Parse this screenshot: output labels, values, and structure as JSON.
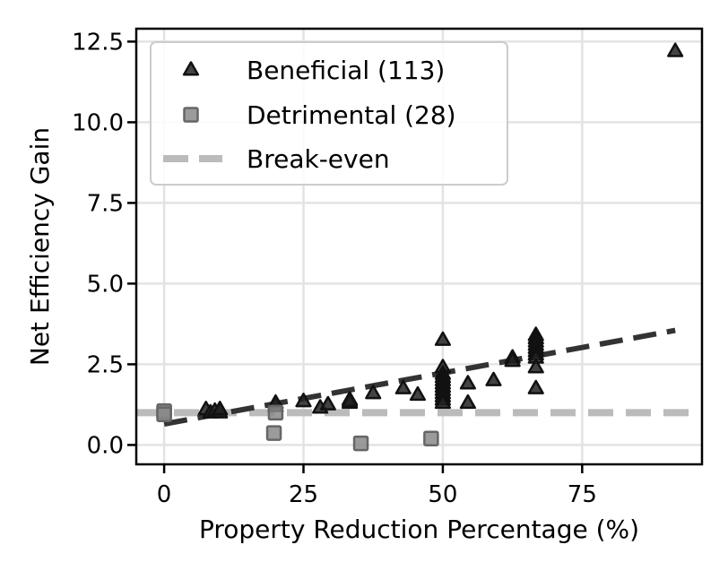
{
  "chart_data": {
    "type": "scatter",
    "title": "",
    "xlabel": "Property Reduction Percentage (%)",
    "ylabel": "Net Efficiency Gain",
    "xlim": [
      -5,
      96.5
    ],
    "ylim": [
      -0.6,
      12.9
    ],
    "xticks": [
      0,
      25,
      50,
      75
    ],
    "xtick_labels": [
      "0",
      "25",
      "50",
      "75"
    ],
    "yticks": [
      0.0,
      2.5,
      5.0,
      7.5,
      10.0,
      12.5
    ],
    "ytick_labels": [
      "0.0",
      "2.5",
      "5.0",
      "7.5",
      "10.0",
      "12.5"
    ],
    "grid": true,
    "legend_position": "top-left",
    "series": [
      {
        "name": "Beneficial (113)",
        "marker": "triangle",
        "color": "#222222",
        "points": [
          [
            7.5,
            1.1
          ],
          [
            8.3,
            1.0
          ],
          [
            9.1,
            1.05
          ],
          [
            10.0,
            1.0
          ],
          [
            10.0,
            1.1
          ],
          [
            20.0,
            1.2
          ],
          [
            20.0,
            1.3
          ],
          [
            25.0,
            1.35
          ],
          [
            28.0,
            1.15
          ],
          [
            29.4,
            1.25
          ],
          [
            33.3,
            1.3
          ],
          [
            33.3,
            1.4
          ],
          [
            33.3,
            1.35
          ],
          [
            37.5,
            1.6
          ],
          [
            42.9,
            1.75
          ],
          [
            45.5,
            1.55
          ],
          [
            50.0,
            3.25
          ],
          [
            50.0,
            2.4
          ],
          [
            50.0,
            2.2
          ],
          [
            50.0,
            2.1
          ],
          [
            50.0,
            2.0
          ],
          [
            50.0,
            1.9
          ],
          [
            50.0,
            1.8
          ],
          [
            50.0,
            1.7
          ],
          [
            50.0,
            1.6
          ],
          [
            50.0,
            1.5
          ],
          [
            50.0,
            1.4
          ],
          [
            50.0,
            1.3
          ],
          [
            54.5,
            1.9
          ],
          [
            54.5,
            1.3
          ],
          [
            59.1,
            2.0
          ],
          [
            62.5,
            2.7
          ],
          [
            62.5,
            2.6
          ],
          [
            66.7,
            3.4
          ],
          [
            66.7,
            3.3
          ],
          [
            66.7,
            3.2
          ],
          [
            66.7,
            3.1
          ],
          [
            66.7,
            3.0
          ],
          [
            66.7,
            2.9
          ],
          [
            66.7,
            2.8
          ],
          [
            66.7,
            2.7
          ],
          [
            66.7,
            2.4
          ],
          [
            66.7,
            1.75
          ],
          [
            91.7,
            12.2
          ]
        ]
      },
      {
        "name": "Detrimental (28)",
        "marker": "square",
        "color": "#8a8a8a",
        "points": [
          [
            0.0,
            1.0
          ],
          [
            0.0,
            1.05
          ],
          [
            0.0,
            0.95
          ],
          [
            20.0,
            1.0
          ],
          [
            19.7,
            0.37
          ],
          [
            35.3,
            0.05
          ],
          [
            47.9,
            0.2
          ]
        ]
      }
    ],
    "reference_lines": [
      {
        "name": "Break-even",
        "type": "horizontal",
        "y": 1.0,
        "style": "dashed",
        "color": "#bbbbbb"
      }
    ],
    "trend_line": {
      "style": "dashed",
      "color": "#333333",
      "x": [
        0,
        91.7
      ],
      "y": [
        0.65,
        3.55
      ]
    }
  }
}
